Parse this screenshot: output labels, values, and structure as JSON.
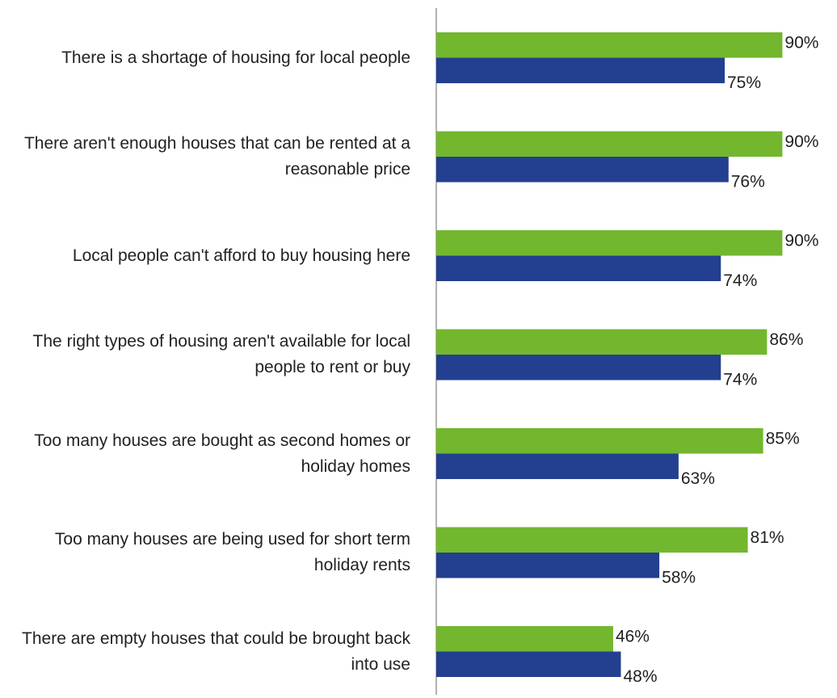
{
  "chart_data": {
    "type": "barh",
    "categories": [
      "There is a shortage of housing for local people",
      "There aren't enough houses that can be rented at a reasonable price",
      "Local people can't afford to buy housing here",
      "The right types of housing aren't available for local people to rent or buy",
      "Too many houses are bought as second homes or holiday homes",
      "Too many houses are being used for short term holiday rents",
      "There are empty houses that could be brought back into use"
    ],
    "series": [
      {
        "color": "#72b72e",
        "values": [
          90,
          90,
          90,
          86,
          85,
          81,
          46
        ],
        "value_labels": [
          "90%",
          "90%",
          "90%",
          "86%",
          "85%",
          "81%",
          "46%"
        ]
      },
      {
        "color": "#233f8f",
        "values": [
          75,
          76,
          74,
          74,
          63,
          58,
          48
        ],
        "value_labels": [
          "75%",
          "76%",
          "74%",
          "74%",
          "63%",
          "58%",
          "48%"
        ]
      }
    ],
    "xlim": [
      0,
      100
    ]
  }
}
